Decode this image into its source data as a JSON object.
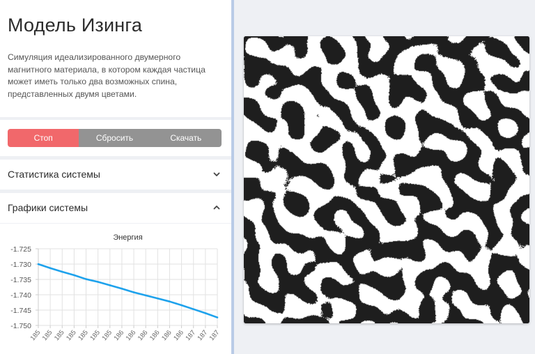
{
  "app": {
    "title": "Модель Изинга",
    "description": "Симуляция идеализированного двумерного магнитного материала, в котором каждая частица может иметь только два возможных спина, представленных двумя цветами."
  },
  "controls": {
    "stop_label": "Стоп",
    "reset_label": "Сбросить",
    "download_label": "Скачать",
    "stop_color": "#f1686b",
    "secondary_color": "#939393"
  },
  "sections": {
    "stats": {
      "title": "Статистика системы",
      "icon": "chevron-down-icon"
    },
    "charts": {
      "title": "Графики системы",
      "icon": "chevron-up-icon"
    }
  },
  "chart_data": {
    "type": "line",
    "title": "Энергия",
    "xlabel": "",
    "ylabel": "",
    "ylim": [
      -1.75,
      -1.725
    ],
    "yticks": [
      "-1.725",
      "-1.730",
      "-1.735",
      "-1.740",
      "-1.745",
      "-1.750"
    ],
    "x": [
      "185",
      "185",
      "185",
      "185",
      "185",
      "185",
      "185",
      "186",
      "186",
      "186",
      "186",
      "186",
      "186",
      "187",
      "187",
      "187"
    ],
    "series": [
      {
        "values": [
          -1.73,
          -1.7313,
          -1.7325,
          -1.7336,
          -1.7349,
          -1.7358,
          -1.7369,
          -1.738,
          -1.7392,
          -1.7402,
          -1.7412,
          -1.7422,
          -1.7434,
          -1.7447,
          -1.746,
          -1.7474
        ],
        "color": "#1ea2ec"
      }
    ],
    "grid": true,
    "line_color": "#1ea2ec"
  },
  "simulation": {
    "spin_up_color": "#ffffff",
    "spin_down_color": "#1e1e1e"
  }
}
